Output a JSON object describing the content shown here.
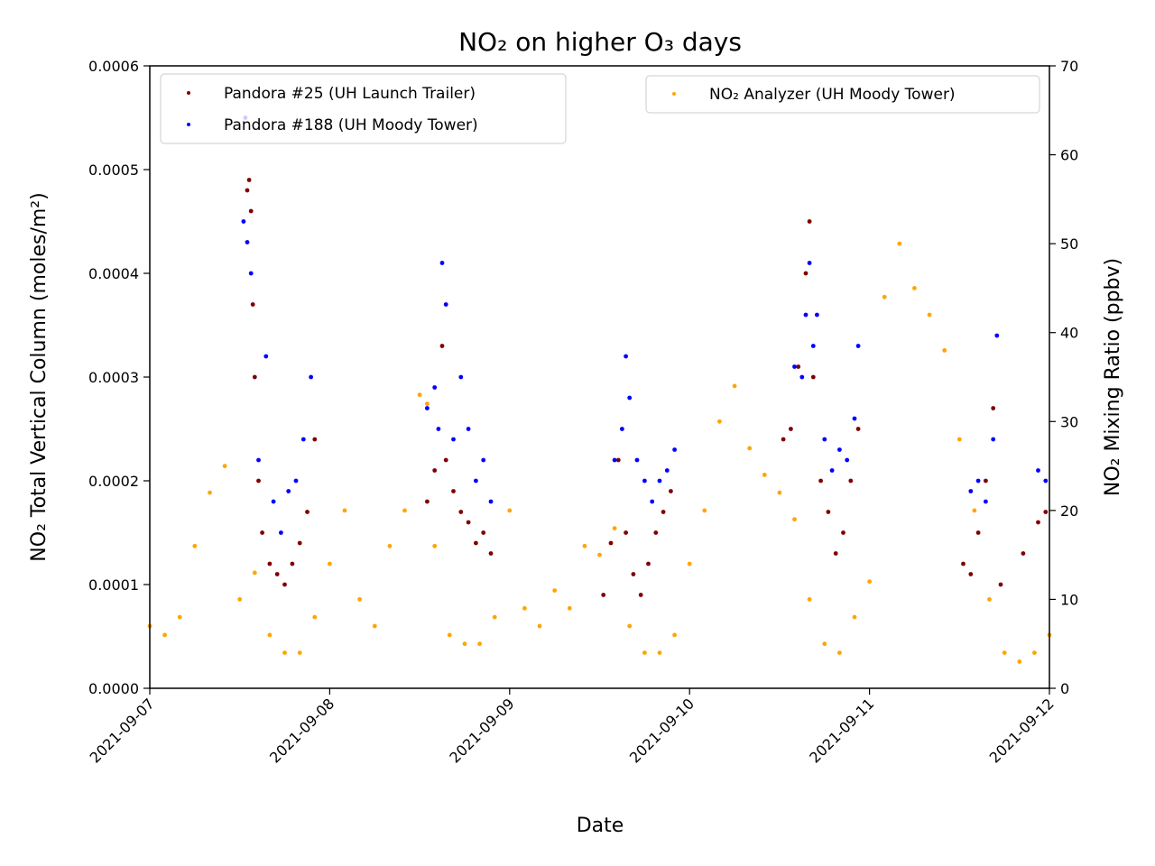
{
  "chart_data": {
    "type": "scatter",
    "title": "NO₂ on higher O₃ days",
    "xlabel": "Date",
    "ylabel": "NO₂ Total Vertical Column (moles/m²)",
    "y2label": "NO₂ Mixing Ratio (ppbv)",
    "xlim": [
      "2021-09-07",
      "2021-09-12"
    ],
    "ylim": [
      0,
      0.0006
    ],
    "y2lim": [
      0,
      70
    ],
    "x_ticks": [
      "2021-09-07",
      "2021-09-08",
      "2021-09-09",
      "2021-09-10",
      "2021-09-11",
      "2021-09-12"
    ],
    "y_ticks": [
      "0.0000",
      "0.0001",
      "0.0002",
      "0.0003",
      "0.0004",
      "0.0005",
      "0.0006"
    ],
    "y2_ticks": [
      "0",
      "10",
      "20",
      "30",
      "40",
      "50",
      "60",
      "70"
    ],
    "grid": false,
    "series": [
      {
        "name": "Pandora #25 (UH Launch Trailer)",
        "axis": "left",
        "color": "#800000",
        "legend": "upper-left",
        "points": [
          [
            "2021-09-07T13:00",
            0.00048
          ],
          [
            "2021-09-07T13:15",
            0.00049
          ],
          [
            "2021-09-07T13:30",
            0.00046
          ],
          [
            "2021-09-07T13:45",
            0.00037
          ],
          [
            "2021-09-07T14:00",
            0.0003
          ],
          [
            "2021-09-07T14:30",
            0.0002
          ],
          [
            "2021-09-07T15:00",
            0.00015
          ],
          [
            "2021-09-07T16:00",
            0.00012
          ],
          [
            "2021-09-07T17:00",
            0.00011
          ],
          [
            "2021-09-07T18:00",
            0.0001
          ],
          [
            "2021-09-07T19:00",
            0.00012
          ],
          [
            "2021-09-07T20:00",
            0.00014
          ],
          [
            "2021-09-07T21:00",
            0.00017
          ],
          [
            "2021-09-07T22:00",
            0.00024
          ],
          [
            "2021-09-08T13:00",
            0.00018
          ],
          [
            "2021-09-08T14:00",
            0.00021
          ],
          [
            "2021-09-08T15:00",
            0.00033
          ],
          [
            "2021-09-08T15:30",
            0.00022
          ],
          [
            "2021-09-08T16:30",
            0.00019
          ],
          [
            "2021-09-08T17:30",
            0.00017
          ],
          [
            "2021-09-08T18:30",
            0.00016
          ],
          [
            "2021-09-08T19:30",
            0.00014
          ],
          [
            "2021-09-08T20:30",
            0.00015
          ],
          [
            "2021-09-08T21:30",
            0.00013
          ],
          [
            "2021-09-09T12:30",
            9e-05
          ],
          [
            "2021-09-09T13:30",
            0.00014
          ],
          [
            "2021-09-09T14:30",
            0.00022
          ],
          [
            "2021-09-09T15:30",
            0.00015
          ],
          [
            "2021-09-09T16:30",
            0.00011
          ],
          [
            "2021-09-09T17:30",
            9e-05
          ],
          [
            "2021-09-09T18:30",
            0.00012
          ],
          [
            "2021-09-09T19:30",
            0.00015
          ],
          [
            "2021-09-09T20:30",
            0.00017
          ],
          [
            "2021-09-09T21:30",
            0.00019
          ],
          [
            "2021-09-10T12:30",
            0.00024
          ],
          [
            "2021-09-10T13:30",
            0.00025
          ],
          [
            "2021-09-10T14:30",
            0.00031
          ],
          [
            "2021-09-10T15:30",
            0.0004
          ],
          [
            "2021-09-10T16:00",
            0.00045
          ],
          [
            "2021-09-10T16:30",
            0.0003
          ],
          [
            "2021-09-10T17:30",
            0.0002
          ],
          [
            "2021-09-10T18:30",
            0.00017
          ],
          [
            "2021-09-10T19:30",
            0.00013
          ],
          [
            "2021-09-10T20:30",
            0.00015
          ],
          [
            "2021-09-10T21:30",
            0.0002
          ],
          [
            "2021-09-10T22:30",
            0.00025
          ],
          [
            "2021-09-11T12:30",
            0.00012
          ],
          [
            "2021-09-11T13:30",
            0.00011
          ],
          [
            "2021-09-11T14:30",
            0.00015
          ],
          [
            "2021-09-11T15:30",
            0.0002
          ],
          [
            "2021-09-11T16:30",
            0.00027
          ],
          [
            "2021-09-11T17:30",
            0.0001
          ],
          [
            "2021-09-11T20:30",
            0.00013
          ],
          [
            "2021-09-11T22:30",
            0.00016
          ],
          [
            "2021-09-11T23:30",
            0.00017
          ]
        ]
      },
      {
        "name": "Pandora #188 (UH Moody Tower)",
        "axis": "left",
        "color": "#0000ff",
        "legend": "upper-left",
        "points": [
          [
            "2021-09-07T12:30",
            0.00045
          ],
          [
            "2021-09-07T12:45",
            0.00055
          ],
          [
            "2021-09-07T13:00",
            0.00043
          ],
          [
            "2021-09-07T13:30",
            0.0004
          ],
          [
            "2021-09-07T14:30",
            0.00022
          ],
          [
            "2021-09-07T15:30",
            0.00032
          ],
          [
            "2021-09-07T16:30",
            0.00018
          ],
          [
            "2021-09-07T17:30",
            0.00015
          ],
          [
            "2021-09-07T18:30",
            0.00019
          ],
          [
            "2021-09-07T19:30",
            0.0002
          ],
          [
            "2021-09-07T20:30",
            0.00024
          ],
          [
            "2021-09-07T21:30",
            0.0003
          ],
          [
            "2021-09-08T13:00",
            0.00027
          ],
          [
            "2021-09-08T14:00",
            0.00029
          ],
          [
            "2021-09-08T14:30",
            0.00025
          ],
          [
            "2021-09-08T15:00",
            0.00041
          ],
          [
            "2021-09-08T15:30",
            0.00037
          ],
          [
            "2021-09-08T16:30",
            0.00024
          ],
          [
            "2021-09-08T17:30",
            0.0003
          ],
          [
            "2021-09-08T18:30",
            0.00025
          ],
          [
            "2021-09-08T19:30",
            0.0002
          ],
          [
            "2021-09-08T20:30",
            0.00022
          ],
          [
            "2021-09-08T21:30",
            0.00018
          ],
          [
            "2021-09-09T14:00",
            0.00022
          ],
          [
            "2021-09-09T15:00",
            0.00025
          ],
          [
            "2021-09-09T15:30",
            0.00032
          ],
          [
            "2021-09-09T16:00",
            0.00028
          ],
          [
            "2021-09-09T17:00",
            0.00022
          ],
          [
            "2021-09-09T18:00",
            0.0002
          ],
          [
            "2021-09-09T19:00",
            0.00018
          ],
          [
            "2021-09-09T20:00",
            0.0002
          ],
          [
            "2021-09-09T21:00",
            0.00021
          ],
          [
            "2021-09-09T22:00",
            0.00023
          ],
          [
            "2021-09-10T14:00",
            0.00031
          ],
          [
            "2021-09-10T15:00",
            0.0003
          ],
          [
            "2021-09-10T15:30",
            0.00036
          ],
          [
            "2021-09-10T16:00",
            0.00041
          ],
          [
            "2021-09-10T16:30",
            0.00033
          ],
          [
            "2021-09-10T17:00",
            0.00036
          ],
          [
            "2021-09-10T18:00",
            0.00024
          ],
          [
            "2021-09-10T19:00",
            0.00021
          ],
          [
            "2021-09-10T20:00",
            0.00023
          ],
          [
            "2021-09-10T21:00",
            0.00022
          ],
          [
            "2021-09-10T22:00",
            0.00026
          ],
          [
            "2021-09-10T22:30",
            0.00033
          ],
          [
            "2021-09-11T13:30",
            0.00019
          ],
          [
            "2021-09-11T14:30",
            0.0002
          ],
          [
            "2021-09-11T15:30",
            0.00018
          ],
          [
            "2021-09-11T16:30",
            0.00024
          ],
          [
            "2021-09-11T17:00",
            0.00034
          ],
          [
            "2021-09-11T22:30",
            0.00021
          ],
          [
            "2021-09-11T23:30",
            0.0002
          ]
        ]
      },
      {
        "name": "NO₂ Analyzer (UH Moody Tower)",
        "axis": "right",
        "color": "#ffa500",
        "legend": "upper-right",
        "points": [
          [
            "2021-09-07T00:00",
            7
          ],
          [
            "2021-09-07T02:00",
            6
          ],
          [
            "2021-09-07T04:00",
            8
          ],
          [
            "2021-09-07T06:00",
            16
          ],
          [
            "2021-09-07T08:00",
            22
          ],
          [
            "2021-09-07T10:00",
            25
          ],
          [
            "2021-09-07T12:00",
            10
          ],
          [
            "2021-09-07T14:00",
            13
          ],
          [
            "2021-09-07T16:00",
            6
          ],
          [
            "2021-09-07T18:00",
            4
          ],
          [
            "2021-09-07T20:00",
            4
          ],
          [
            "2021-09-07T22:00",
            8
          ],
          [
            "2021-09-08T00:00",
            14
          ],
          [
            "2021-09-08T02:00",
            20
          ],
          [
            "2021-09-08T04:00",
            10
          ],
          [
            "2021-09-08T06:00",
            7
          ],
          [
            "2021-09-08T08:00",
            16
          ],
          [
            "2021-09-08T10:00",
            20
          ],
          [
            "2021-09-08T12:00",
            33
          ],
          [
            "2021-09-08T13:00",
            32
          ],
          [
            "2021-09-08T14:00",
            16
          ],
          [
            "2021-09-08T16:00",
            6
          ],
          [
            "2021-09-08T18:00",
            5
          ],
          [
            "2021-09-08T20:00",
            5
          ],
          [
            "2021-09-08T22:00",
            8
          ],
          [
            "2021-09-09T00:00",
            20
          ],
          [
            "2021-09-09T02:00",
            9
          ],
          [
            "2021-09-09T04:00",
            7
          ],
          [
            "2021-09-09T06:00",
            11
          ],
          [
            "2021-09-09T08:00",
            9
          ],
          [
            "2021-09-09T10:00",
            16
          ],
          [
            "2021-09-09T12:00",
            15
          ],
          [
            "2021-09-09T14:00",
            18
          ],
          [
            "2021-09-09T16:00",
            7
          ],
          [
            "2021-09-09T18:00",
            4
          ],
          [
            "2021-09-09T20:00",
            4
          ],
          [
            "2021-09-09T22:00",
            6
          ],
          [
            "2021-09-10T00:00",
            14
          ],
          [
            "2021-09-10T02:00",
            20
          ],
          [
            "2021-09-10T04:00",
            30
          ],
          [
            "2021-09-10T06:00",
            34
          ],
          [
            "2021-09-10T08:00",
            27
          ],
          [
            "2021-09-10T10:00",
            24
          ],
          [
            "2021-09-10T12:00",
            22
          ],
          [
            "2021-09-10T14:00",
            19
          ],
          [
            "2021-09-10T16:00",
            10
          ],
          [
            "2021-09-10T18:00",
            5
          ],
          [
            "2021-09-10T20:00",
            4
          ],
          [
            "2021-09-10T22:00",
            8
          ],
          [
            "2021-09-11T00:00",
            12
          ],
          [
            "2021-09-11T02:00",
            44
          ],
          [
            "2021-09-11T04:00",
            50
          ],
          [
            "2021-09-11T06:00",
            45
          ],
          [
            "2021-09-11T08:00",
            42
          ],
          [
            "2021-09-11T10:00",
            38
          ],
          [
            "2021-09-11T12:00",
            28
          ],
          [
            "2021-09-11T14:00",
            20
          ],
          [
            "2021-09-11T16:00",
            10
          ],
          [
            "2021-09-11T18:00",
            4
          ],
          [
            "2021-09-11T20:00",
            3
          ],
          [
            "2021-09-11T22:00",
            4
          ],
          [
            "2021-09-12T00:00",
            6
          ]
        ]
      }
    ]
  }
}
